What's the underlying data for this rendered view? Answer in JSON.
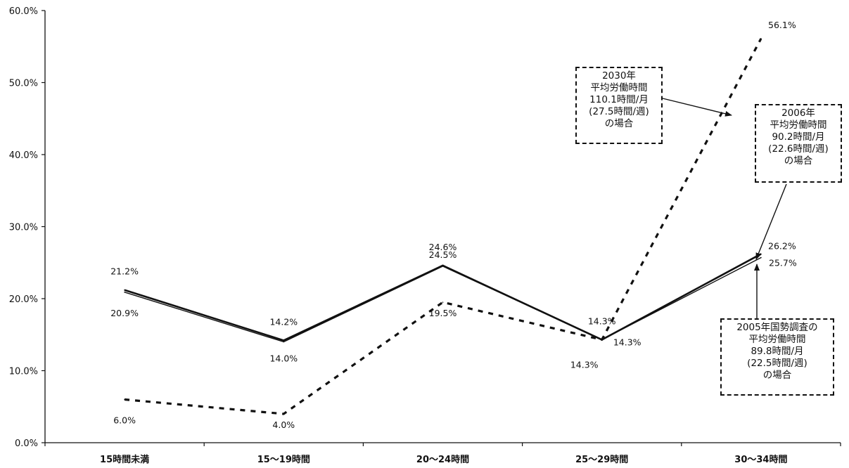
{
  "chart_data": {
    "type": "line",
    "categories": [
      "15時間未満",
      "15～19時間",
      "20～24時間",
      "25～29時間",
      "30～34時間"
    ],
    "ylim": [
      0,
      60
    ],
    "yticks": [
      "0.0%",
      "10.0%",
      "20.0%",
      "30.0%",
      "40.0%",
      "50.0%",
      "60.0%"
    ],
    "grid": false,
    "series": [
      {
        "name": "2006年",
        "values": [
          21.2,
          14.2,
          24.6,
          14.3,
          26.2
        ],
        "labels": [
          "21.2%",
          "14.2%",
          "24.6%",
          "14.3%",
          "26.2%"
        ],
        "style": "solid"
      },
      {
        "name": "2005年国勢調査",
        "values": [
          20.9,
          14.0,
          24.5,
          14.3,
          25.7
        ],
        "labels": [
          "20.9%",
          "14.0%",
          "24.5%",
          "14.3%",
          "25.7%"
        ],
        "style": "solid"
      },
      {
        "name": "2030年",
        "values": [
          6.0,
          4.0,
          19.5,
          14.3,
          56.1
        ],
        "labels": [
          "6.0%",
          "4.0%",
          "19.5%",
          "14.3%",
          "56.1%"
        ],
        "style": "dashed"
      }
    ],
    "annotations": [
      {
        "lines": [
          "2030年",
          "平均労働時間",
          "110.1時間/月",
          "(27.5時間/週)",
          "の場合"
        ]
      },
      {
        "lines": [
          "2006年",
          "平均労働時間",
          "90.2時間/月",
          "(22.6時間/週)",
          "の場合"
        ]
      },
      {
        "lines": [
          "2005年国勢調査の",
          "平均労働時間",
          "89.8時間/月",
          "(22.5時間/週)",
          "の場合"
        ]
      }
    ]
  }
}
